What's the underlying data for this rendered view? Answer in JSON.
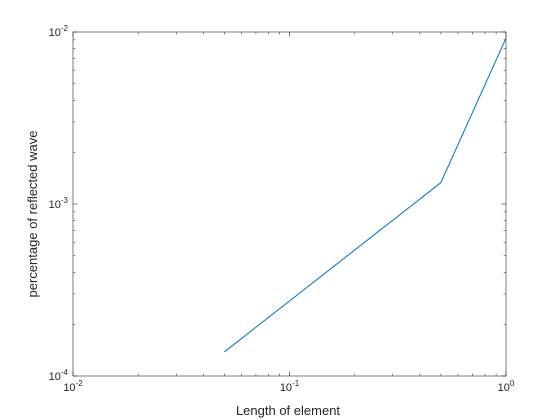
{
  "chart_data": {
    "type": "line",
    "title": "",
    "xlabel": "Length of element",
    "ylabel": "percentage of reflected wave",
    "xscale": "log",
    "yscale": "log",
    "xlim": [
      0.01,
      1
    ],
    "ylim": [
      0.0001,
      0.01
    ],
    "grid": false,
    "box": true,
    "x_ticks": [
      {
        "value": 0.01,
        "base": "10",
        "exponent": "-2"
      },
      {
        "value": 0.1,
        "base": "10",
        "exponent": "-1"
      },
      {
        "value": 1,
        "label": "10",
        "exponent": "0"
      }
    ],
    "y_ticks": [
      {
        "value": 0.0001,
        "base": "10",
        "exponent": "-4"
      },
      {
        "value": 0.001,
        "base": "10",
        "exponent": "-3"
      },
      {
        "value": 0.01,
        "base": "10",
        "exponent": "-2"
      }
    ],
    "series": [
      {
        "color": "#0072bd",
        "x": [
          0.05,
          0.5,
          1
        ],
        "y": [
          0.000138,
          0.00133,
          0.0092
        ]
      }
    ]
  }
}
